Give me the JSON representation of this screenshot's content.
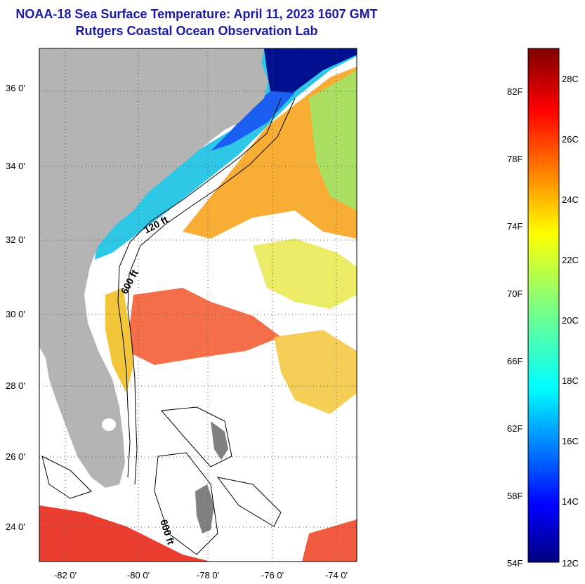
{
  "title": "NOAA-18 Sea Surface Temperature:  April 11, 2023 1607 GMT",
  "subtitle": "Rutgers Coastal Ocean Observation Lab",
  "map": {
    "lat_range": [
      23,
      37
    ],
    "lon_range": [
      -83,
      -73
    ],
    "lat_labels": [
      "36 0'",
      "34 0'",
      "32 0'",
      "30 0'",
      "28 0'",
      "26 0'",
      "24 0'"
    ],
    "lat_values": [
      36,
      34,
      32,
      30,
      28,
      26,
      24
    ],
    "lon_labels": [
      "-82 0'",
      "-80 0'",
      "-78 0'",
      "-76 0'",
      "-74 0'"
    ],
    "lon_values": [
      -82,
      -80,
      -78,
      -76,
      -74
    ],
    "contours": [
      "120 ft",
      "600 ft",
      "600 ft"
    ],
    "land_color": "#b4b4b4",
    "cloud_color": "#ffffff"
  },
  "colorbar": {
    "fahrenheit": [
      "82F",
      "78F",
      "74F",
      "70F",
      "66F",
      "62F",
      "58F",
      "54F"
    ],
    "fahrenheit_values": [
      82,
      78,
      74,
      70,
      66,
      62,
      58,
      54
    ],
    "celsius": [
      "28C",
      "26C",
      "24C",
      "22C",
      "20C",
      "18C",
      "16C",
      "14C",
      "12C"
    ],
    "celsius_values": [
      28,
      26,
      24,
      22,
      20,
      18,
      16,
      14,
      12
    ],
    "range_c": [
      12,
      29.5
    ]
  }
}
